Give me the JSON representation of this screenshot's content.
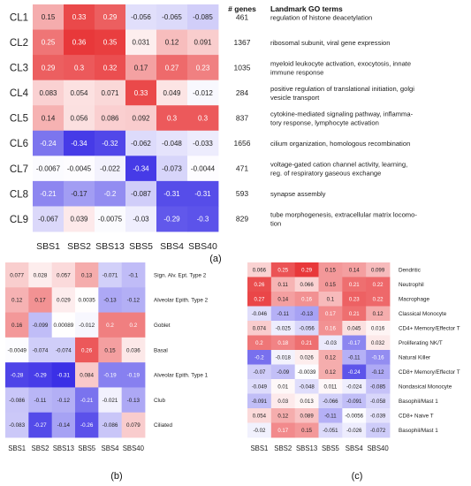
{
  "chart_data": [
    {
      "type": "heatmap",
      "panel_label": "(a)",
      "rows": [
        "CL1",
        "CL2",
        "CL3",
        "CL4",
        "CL5",
        "CL6",
        "CL7",
        "CL8",
        "CL9"
      ],
      "columns": [
        "SBS1",
        "SBS2",
        "SBS13",
        "SBS5",
        "SBS4",
        "SBS40"
      ],
      "values": [
        [
          0.15,
          0.33,
          0.29,
          -0.056,
          -0.065,
          -0.085
        ],
        [
          0.25,
          0.36,
          0.35,
          0.031,
          0.12,
          0.091
        ],
        [
          0.29,
          0.3,
          0.32,
          0.17,
          0.27,
          0.23
        ],
        [
          0.083,
          0.054,
          0.071,
          0.33,
          0.049,
          -0.012
        ],
        [
          0.14,
          0.056,
          0.086,
          0.092,
          0.3,
          0.3
        ],
        [
          -0.24,
          -0.34,
          -0.32,
          -0.062,
          -0.048,
          -0.033
        ],
        [
          -0.0067,
          -0.0045,
          -0.022,
          -0.34,
          -0.073,
          -0.0044
        ],
        [
          -0.21,
          -0.17,
          -0.2,
          -0.087,
          -0.31,
          -0.31
        ],
        [
          -0.067,
          0.039,
          -0.0075,
          -0.03,
          -0.29,
          -0.3
        ]
      ],
      "labels": [
        [
          "0.15",
          "0.33",
          "0.29",
          "-0.056",
          "-0.065",
          "-0.085"
        ],
        [
          "0.25",
          "0.36",
          "0.35",
          "0.031",
          "0.12",
          "0.091"
        ],
        [
          "0.29",
          "0.3",
          "0.32",
          "0.17",
          "0.27",
          "0.23"
        ],
        [
          "0.083",
          "0.054",
          "0.071",
          "0.33",
          "0.049",
          "-0.012"
        ],
        [
          "0.14",
          "0.056",
          "0.086",
          "0.092",
          "0.3",
          "0.3"
        ],
        [
          "-0.24",
          "-0.34",
          "-0.32",
          "-0.062",
          "-0.048",
          "-0.033"
        ],
        [
          "-0.0067",
          "-0.0045",
          "-0.022",
          "-0.34",
          "-0.073",
          "-0.0044"
        ],
        [
          "-0.21",
          "-0.17",
          "-0.2",
          "-0.087",
          "-0.31",
          "-0.31"
        ],
        [
          "-0.067",
          "0.039",
          "-0.0075",
          "-0.03",
          "-0.29",
          "-0.3"
        ]
      ],
      "table_headers": {
        "genes": "# genes",
        "go_terms": "Landmark GO terms"
      },
      "genes": [
        "461",
        "1367",
        "1035",
        "284",
        "837",
        "1656",
        "471",
        "593",
        "829"
      ],
      "go_terms": [
        [
          "regulation of histone deacetylation"
        ],
        [
          "ribosomal subunit, viral gene expression"
        ],
        [
          "myeloid leukocyte activation, exocytosis, innate",
          "immune response"
        ],
        [
          "positive regulation of translational initiation, golgi",
          "vesicle transport"
        ],
        [
          "cytokine-mediated signaling pathway, inflamma-",
          "tory response, lymphocyte activation"
        ],
        [
          "cilium organization, homologous recombination"
        ],
        [
          "voltage-gated cation channel activity, learning,",
          "reg. of respiratory gaseous exchange"
        ],
        [
          "synapse assembly"
        ],
        [
          "tube morphogenesis, extracellular matrix locomo-",
          "tion"
        ]
      ]
    },
    {
      "type": "heatmap",
      "panel_label": "(b)",
      "rows": [
        "Sign. Alv. Ept. Type 2",
        "Alveolar Epith. Type 2",
        "Goblet",
        "Basal",
        "Alveolar Epith. Type 1",
        "Club",
        "Ciliated"
      ],
      "columns": [
        "SBS1",
        "SBS2",
        "SBS13",
        "SBS5",
        "SBS4",
        "SBS40"
      ],
      "values": [
        [
          0.077,
          0.028,
          0.057,
          0.13,
          -0.071,
          -0.1
        ],
        [
          0.12,
          0.17,
          0.029,
          0.0035,
          -0.13,
          -0.12
        ],
        [
          0.16,
          -0.099,
          0.00089,
          -0.012,
          0.2,
          0.2
        ],
        [
          -0.0049,
          -0.074,
          -0.074,
          0.26,
          0.15,
          0.036
        ],
        [
          -0.28,
          -0.29,
          -0.31,
          0.084,
          -0.19,
          -0.19
        ],
        [
          -0.086,
          -0.11,
          -0.12,
          -0.21,
          -0.021,
          -0.13
        ],
        [
          -0.083,
          -0.27,
          -0.14,
          -0.26,
          -0.086,
          0.079
        ]
      ],
      "labels": [
        [
          "0.077",
          "0.028",
          "0.057",
          "0.13",
          "-0.071",
          "-0.1"
        ],
        [
          "0.12",
          "0.17",
          "0.029",
          "0.0035",
          "-0.13",
          "-0.12"
        ],
        [
          "0.16",
          "-0.099",
          "0.00089",
          "-0.012",
          "0.2",
          "0.2"
        ],
        [
          "-0.0049",
          "-0.074",
          "-0.074",
          "0.26",
          "0.15",
          "0.036"
        ],
        [
          "-0.28",
          "-0.29",
          "-0.31",
          "0.084",
          "-0.19",
          "-0.19"
        ],
        [
          "-0.086",
          "-0.11",
          "-0.12",
          "-0.21",
          "-0.021",
          "-0.13"
        ],
        [
          "-0.083",
          "-0.27",
          "-0.14",
          "-0.26",
          "-0.086",
          "0.079"
        ]
      ]
    },
    {
      "type": "heatmap",
      "panel_label": "(c)",
      "rows": [
        "Dendritic",
        "Neutrophil",
        "Macrophage",
        "Classical Monocyte",
        "CD4+ Memory/Effector T",
        "Proliferating NK/T",
        "Natural Killer",
        "CD8+ Memory/Effector T",
        "Nondasical Monocyte",
        "Basophil/Mast 1",
        "CD8+ Naive T",
        "Basophil/Mast 1"
      ],
      "columns": [
        "SBS1",
        "SBS2",
        "SBS13",
        "SBS5",
        "SBS4",
        "SBS40"
      ],
      "values": [
        [
          0.066,
          0.25,
          0.29,
          0.15,
          0.14,
          0.099
        ],
        [
          0.26,
          0.11,
          0.066,
          0.15,
          0.21,
          0.22
        ],
        [
          0.27,
          0.14,
          0.16,
          0.1,
          0.23,
          0.22
        ],
        [
          -0.046,
          -0.11,
          -0.13,
          0.17,
          0.21,
          0.12
        ],
        [
          0.074,
          -0.025,
          -0.056,
          0.16,
          0.045,
          0.016
        ],
        [
          0.2,
          0.18,
          0.21,
          -0.03,
          -0.17,
          0.032
        ],
        [
          -0.2,
          -0.018,
          0.026,
          0.12,
          -0.11,
          -0.16
        ],
        [
          -0.07,
          -0.09,
          -0.0039,
          0.12,
          -0.24,
          -0.12
        ],
        [
          -0.049,
          0.01,
          -0.048,
          0.011,
          -0.024,
          -0.085
        ],
        [
          -0.091,
          0.03,
          0.013,
          -0.066,
          -0.091,
          -0.058
        ],
        [
          0.054,
          0.12,
          0.089,
          -0.11,
          -0.0056,
          -0.039
        ],
        [
          -0.02,
          0.17,
          0.15,
          -0.051,
          -0.026,
          -0.072
        ]
      ],
      "labels": [
        [
          "0.066",
          "0.25",
          "0.29",
          "0.15",
          "0.14",
          "0.099"
        ],
        [
          "0.26",
          "0.11",
          "0.066",
          "0.15",
          "0.21",
          "0.22"
        ],
        [
          "0.27",
          "0.14",
          "0.16",
          "0.1",
          "0.23",
          "0.22"
        ],
        [
          "-0.046",
          "-0.11",
          "-0.13",
          "0.17",
          "0.21",
          "0.12"
        ],
        [
          "0.074",
          "-0.025",
          "-0.056",
          "0.16",
          "0.045",
          "0.016"
        ],
        [
          "0.2",
          "0.18",
          "0.21",
          "-0.03",
          "-0.17",
          "0.032"
        ],
        [
          "-0.2",
          "-0.018",
          "0.026",
          "0.12",
          "-0.11",
          "-0.16"
        ],
        [
          "-0.07",
          "-0.09",
          "-0.0039",
          "0.12",
          "-0.24",
          "-0.12"
        ],
        [
          "-0.049",
          "0.01",
          "-0.048",
          "0.011",
          "-0.024",
          "-0.085"
        ],
        [
          "-0.091",
          "0.03",
          "0.013",
          "-0.066",
          "-0.091",
          "-0.058"
        ],
        [
          "0.054",
          "0.12",
          "0.089",
          "-0.11",
          "-0.0056",
          "-0.039"
        ],
        [
          "-0.02",
          "0.17",
          "0.15",
          "-0.051",
          "-0.026",
          "-0.072"
        ]
      ]
    }
  ],
  "colors": {
    "positive": "#e8383a",
    "negative": "#3b30e6",
    "neutral": "#ffffff"
  }
}
